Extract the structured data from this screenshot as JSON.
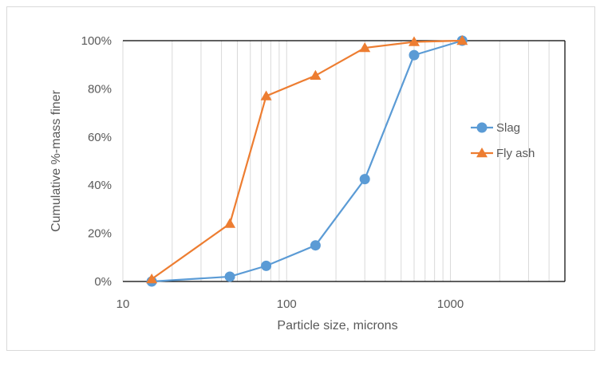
{
  "chart_data": {
    "type": "line",
    "title": "",
    "xlabel": "Particle size, microns",
    "ylabel": "Cumulative %-mass finer",
    "x_scale": "log",
    "xlim": [
      10,
      5000
    ],
    "ylim": [
      0,
      100
    ],
    "x_tick_labels": [
      "10",
      "100",
      "1000"
    ],
    "y_tick_labels": [
      "0%",
      "20%",
      "40%",
      "60%",
      "80%",
      "100%"
    ],
    "grid": "vertical-minor-log",
    "legend_position": "right",
    "series": [
      {
        "name": "Slag",
        "color": "#5b9bd5",
        "marker": "circle",
        "x": [
          15,
          45,
          75,
          150,
          300,
          600,
          1180
        ],
        "y": [
          0,
          2,
          6.5,
          15,
          42.5,
          94,
          100
        ]
      },
      {
        "name": "Fly ash",
        "color": "#ed7d31",
        "marker": "triangle",
        "x": [
          15,
          45,
          75,
          150,
          300,
          600,
          1180
        ],
        "y": [
          1,
          24,
          77,
          85.5,
          97,
          99.5,
          100
        ]
      }
    ]
  }
}
